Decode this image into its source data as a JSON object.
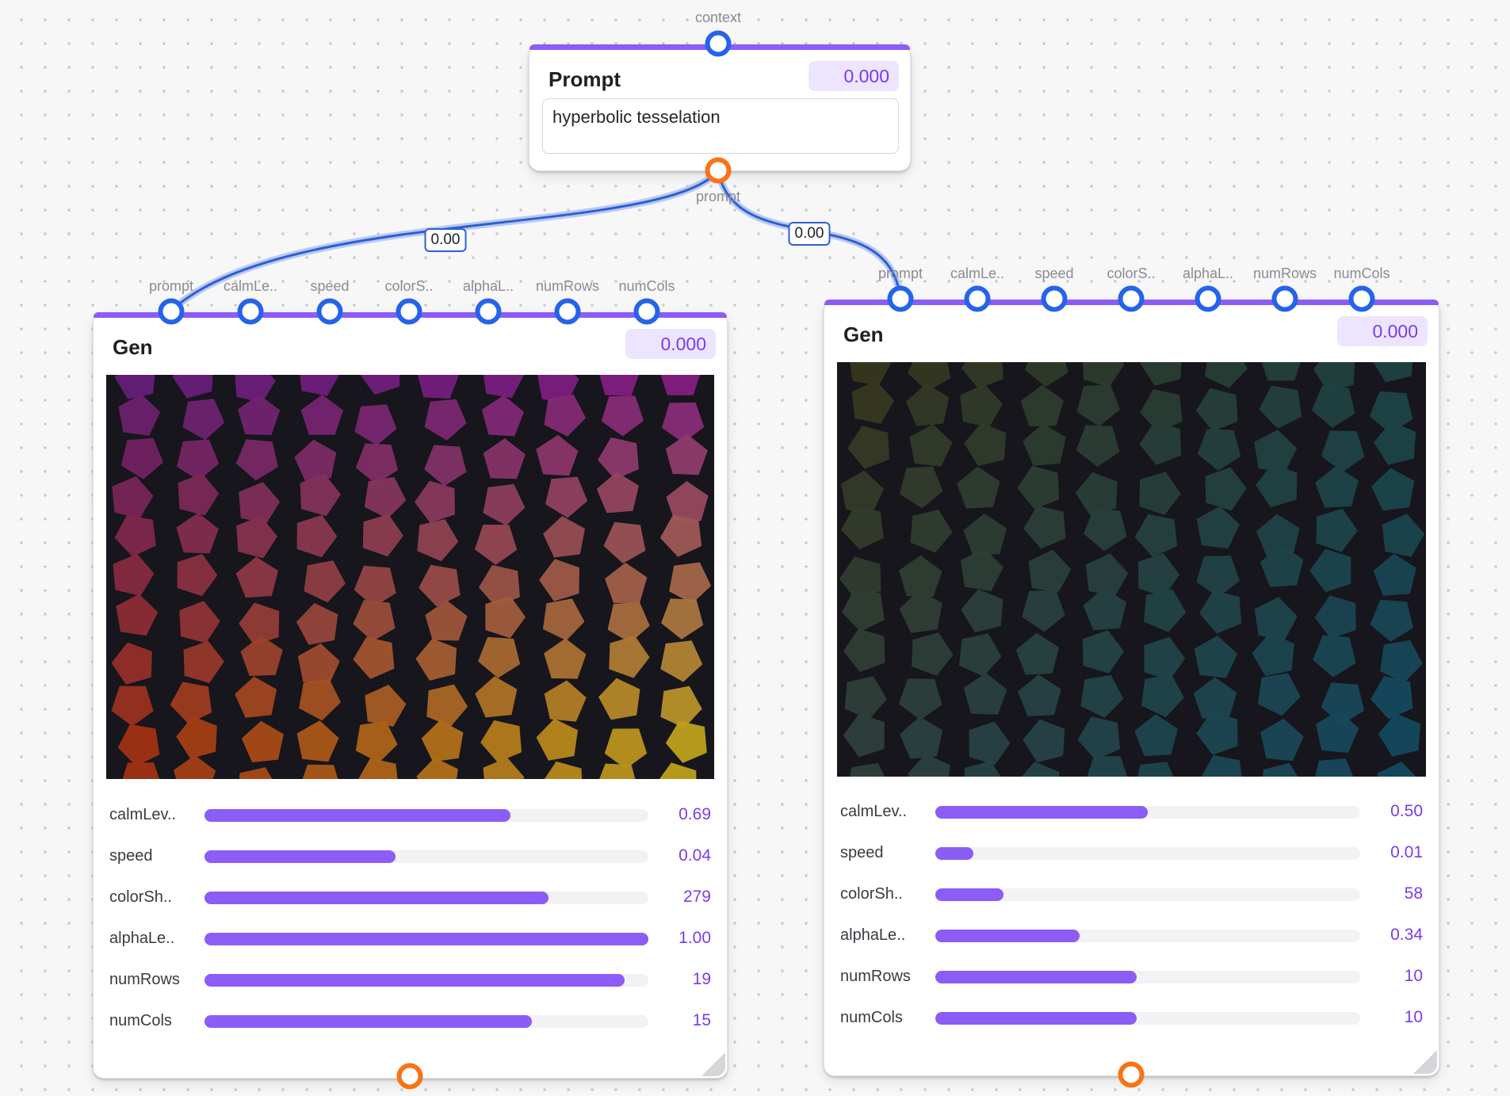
{
  "colors": {
    "accent": "#8b5cf6",
    "input_handle": "#2563eb",
    "output_handle": "#f97316",
    "edge": "#2f5fd0"
  },
  "prompt_node": {
    "context_label": "context",
    "title": "Prompt",
    "value": "0.000",
    "text": "hyperbolic tesselation",
    "output_label": "prompt"
  },
  "edges": [
    {
      "label": "0.00"
    },
    {
      "label": "0.00"
    }
  ],
  "gen_nodes": [
    {
      "title": "Gen",
      "value": "0.000",
      "palette": "warm",
      "inputs": [
        "prompt",
        "calmLe..",
        "speed",
        "colorS..",
        "alphaL..",
        "numRows",
        "numCols"
      ],
      "sliders": [
        {
          "label": "calmLev..",
          "value": "0.69",
          "fraction": 0.69
        },
        {
          "label": "speed",
          "value": "0.04",
          "fraction": 0.43
        },
        {
          "label": "colorSh..",
          "value": "279",
          "fraction": 0.775
        },
        {
          "label": "alphaLe..",
          "value": "1.00",
          "fraction": 1.0
        },
        {
          "label": "numRows",
          "value": "19",
          "fraction": 0.947
        },
        {
          "label": "numCols",
          "value": "15",
          "fraction": 0.737
        }
      ]
    },
    {
      "title": "Gen",
      "value": "0.000",
      "palette": "green",
      "inputs": [
        "prompt",
        "calmLe..",
        "speed",
        "colorS..",
        "alphaL..",
        "numRows",
        "numCols"
      ],
      "sliders": [
        {
          "label": "calmLev..",
          "value": "0.50",
          "fraction": 0.5
        },
        {
          "label": "speed",
          "value": "0.01",
          "fraction": 0.09
        },
        {
          "label": "colorSh..",
          "value": "58",
          "fraction": 0.161
        },
        {
          "label": "alphaLe..",
          "value": "0.34",
          "fraction": 0.34
        },
        {
          "label": "numRows",
          "value": "10",
          "fraction": 0.474
        },
        {
          "label": "numCols",
          "value": "10",
          "fraction": 0.474
        }
      ]
    }
  ]
}
